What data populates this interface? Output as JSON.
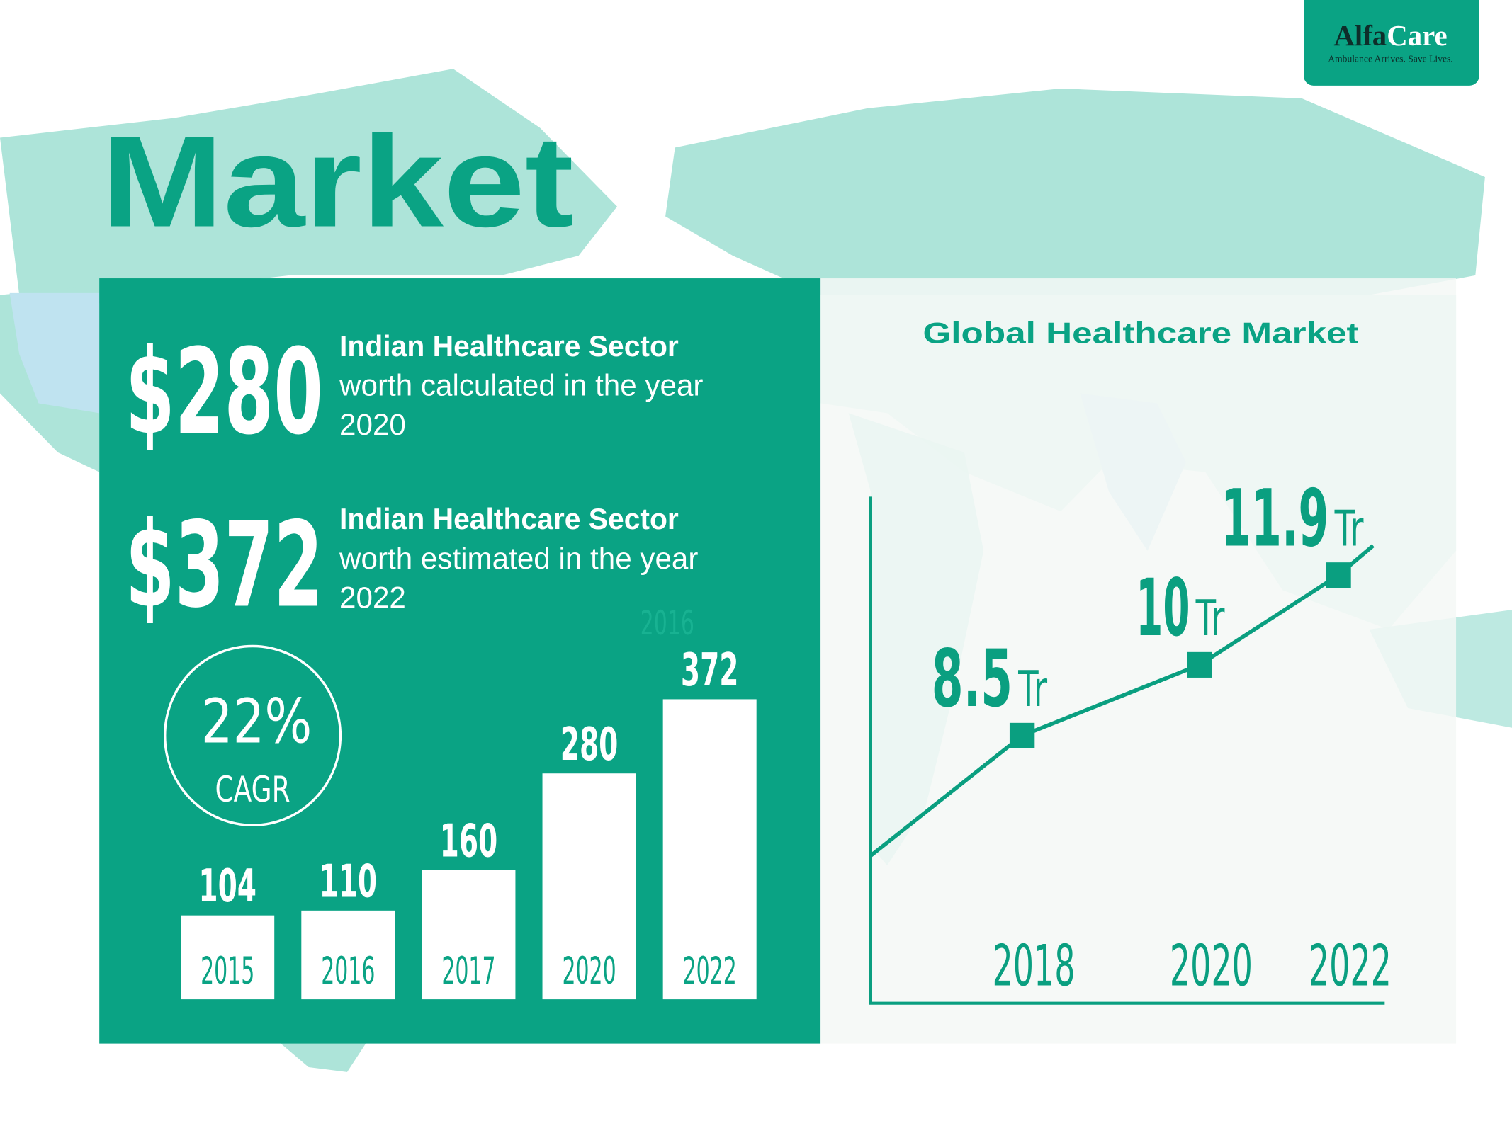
{
  "logo": {
    "name_first": "Alfa",
    "name_second": "Care",
    "tagline": "Ambulance Arrives. Save Lives."
  },
  "title": "Market",
  "stats": [
    {
      "amount": "$280",
      "heading": "Indian Healthcare Sector",
      "lines": [
        "worth calculated in the year",
        "2020"
      ]
    },
    {
      "amount": "$372",
      "heading": "Indian Healthcare Sector",
      "lines": [
        "worth estimated in the year",
        "2022"
      ]
    }
  ],
  "cagr": {
    "value": "22%",
    "label": "CAGR"
  },
  "chart_data": [
    {
      "type": "bar",
      "categories": [
        "2015",
        "2016",
        "2017",
        "2020",
        "2022"
      ],
      "values": [
        104,
        110,
        160,
        280,
        372
      ],
      "color": "#ffffff",
      "annotation": "2016"
    },
    {
      "type": "line",
      "title": "Global Healthcare Market",
      "categories": [
        "2018",
        "2020",
        "2022"
      ],
      "values": [
        8.5,
        10,
        11.9
      ],
      "unit": "Tr",
      "color": "#0a9f80"
    }
  ]
}
